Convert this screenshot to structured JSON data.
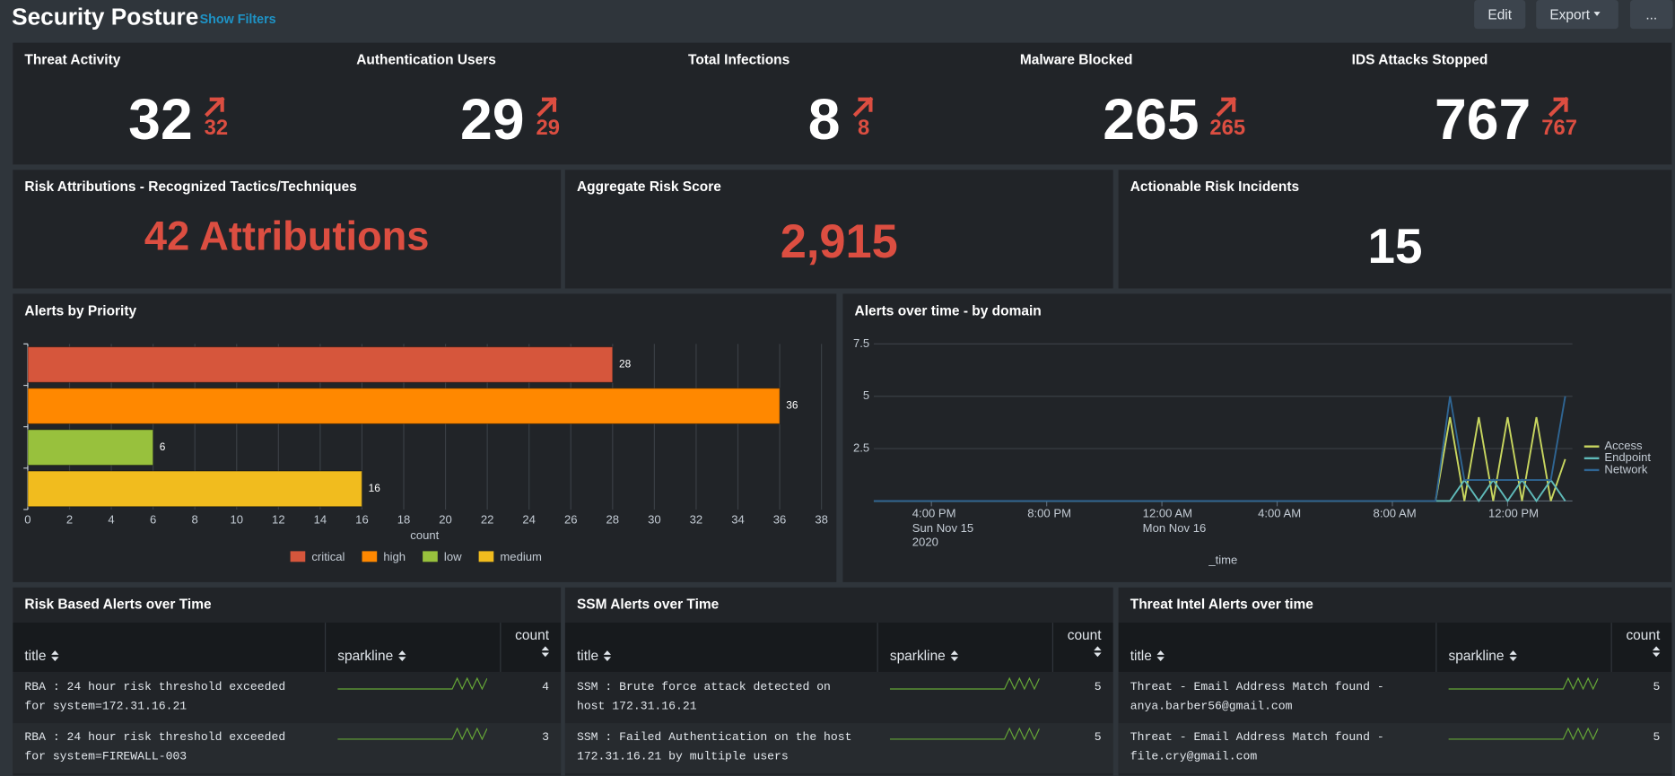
{
  "header": {
    "title": "Security Posture",
    "show_filters": "Show Filters",
    "buttons": [
      "Edit",
      "Export",
      "..."
    ]
  },
  "kpis": [
    {
      "title": "Threat Activity",
      "value": 32,
      "delta": 32
    },
    {
      "title": "Authentication Users",
      "value": 29,
      "delta": 29
    },
    {
      "title": "Total Infections",
      "value": 8,
      "delta": 8
    },
    {
      "title": "Malware Blocked",
      "value": 265,
      "delta": 265
    },
    {
      "title": "IDS Attacks Stopped",
      "value": 767,
      "delta": 767
    }
  ],
  "risk": [
    {
      "title": "Risk Attributions - Recognized Tactics/Techniques",
      "value": "42 Attributions",
      "color": "#dc4e41"
    },
    {
      "title": "Aggregate Risk Score",
      "value": "2,915",
      "color": "#dc4e41"
    },
    {
      "title": "Actionable Risk Incidents",
      "value": 15,
      "color": "#ffffff"
    }
  ],
  "chart_data": [
    {
      "type": "bar",
      "orientation": "horizontal",
      "title": "Alerts by Priority",
      "categories": [
        "critical",
        "high",
        "low",
        "medium"
      ],
      "values": [
        28,
        36,
        6,
        16
      ],
      "colors": [
        "#d6563c",
        "#ff8800",
        "#98c13d",
        "#f1bc1e"
      ],
      "xlim": [
        0,
        38
      ],
      "xticks": [
        0,
        2,
        4,
        6,
        8,
        10,
        12,
        14,
        16,
        18,
        20,
        22,
        24,
        26,
        28,
        30,
        32,
        34,
        36,
        38
      ],
      "xlabel": "count",
      "grid": true,
      "legend": "bottom"
    },
    {
      "type": "line",
      "title": "Alerts over time - by domain",
      "x": [
        "2020-11-15T14:00",
        "2020-11-16T09:30",
        "2020-11-16T10:00",
        "2020-11-16T10:30",
        "2020-11-16T11:00",
        "2020-11-16T11:30",
        "2020-11-16T12:00",
        "2020-11-16T12:30",
        "2020-11-16T13:00",
        "2020-11-16T13:30",
        "2020-11-16T14:00"
      ],
      "series": [
        {
          "name": "Access",
          "color": "#c8d65f",
          "values": [
            0,
            0,
            4,
            0,
            4,
            0,
            4,
            0,
            4,
            0,
            2
          ]
        },
        {
          "name": "Endpoint",
          "color": "#5fbab9",
          "values": [
            0,
            0,
            0,
            1,
            0,
            1,
            0,
            1,
            0,
            1,
            0
          ]
        },
        {
          "name": "Network",
          "color": "#2f6593",
          "values": [
            0,
            0,
            5,
            1,
            1,
            1,
            1,
            1,
            1,
            1,
            5
          ]
        }
      ],
      "xlim": [
        "2020-11-15T14:00",
        "2020-11-16T14:15"
      ],
      "xticks": [
        {
          "value": "2020-11-15T16:00",
          "label": "4:00 PM\nSun Nov 15\n2020"
        },
        {
          "value": "2020-11-15T20:00",
          "label": "8:00 PM"
        },
        {
          "value": "2020-11-16T00:00",
          "label": "12:00 AM\nMon Nov 16"
        },
        {
          "value": "2020-11-16T04:00",
          "label": "4:00 AM"
        },
        {
          "value": "2020-11-16T08:00",
          "label": "8:00 AM"
        },
        {
          "value": "2020-11-16T12:00",
          "label": "12:00 PM"
        }
      ],
      "ylim": [
        0,
        7.5
      ],
      "yticks": [
        2.5,
        5,
        7.5
      ],
      "xlabel": "_time",
      "grid": true,
      "legend": "right"
    }
  ],
  "tables": [
    {
      "title": "Risk Based Alerts over Time",
      "columns": [
        "title",
        "sparkline",
        "count"
      ],
      "rows": [
        {
          "title": "RBA : 24 hour risk threshold exceeded for system=172.31.16.21",
          "sparkline": [
            0,
            0,
            0,
            0,
            0,
            0,
            0,
            0,
            0,
            0,
            0,
            0,
            0,
            0,
            0,
            0,
            0,
            0,
            0,
            0,
            0,
            0,
            0,
            0,
            1,
            0,
            1,
            0,
            1,
            0,
            1
          ],
          "count": 4
        },
        {
          "title": "RBA : 24 hour risk threshold exceeded for system=FIREWALL-003",
          "sparkline": [
            0,
            0,
            0,
            0,
            0,
            0,
            0,
            0,
            0,
            0,
            0,
            0,
            0,
            0,
            0,
            0,
            0,
            0,
            0,
            0,
            0,
            0,
            0,
            0,
            1,
            0,
            1,
            0,
            1,
            0,
            1
          ],
          "count": 3
        }
      ]
    },
    {
      "title": "SSM Alerts over Time",
      "columns": [
        "title",
        "sparkline",
        "count"
      ],
      "rows": [
        {
          "title": "SSM : Brute force attack detected on host 172.31.16.21",
          "sparkline": [
            0,
            0,
            0,
            0,
            0,
            0,
            0,
            0,
            0,
            0,
            0,
            0,
            0,
            0,
            0,
            0,
            0,
            0,
            0,
            0,
            0,
            0,
            0,
            0,
            1,
            0,
            1,
            0,
            1,
            0,
            1
          ],
          "count": 5
        },
        {
          "title": "SSM : Failed Authentication on the host 172.31.16.21 by multiple users",
          "sparkline": [
            0,
            0,
            0,
            0,
            0,
            0,
            0,
            0,
            0,
            0,
            0,
            0,
            0,
            0,
            0,
            0,
            0,
            0,
            0,
            0,
            0,
            0,
            0,
            0,
            1,
            0,
            1,
            0,
            1,
            0,
            1
          ],
          "count": 5
        }
      ]
    },
    {
      "title": "Threat Intel Alerts over time",
      "columns": [
        "title",
        "sparkline",
        "count"
      ],
      "rows": [
        {
          "title": "Threat - Email Address Match found - anya.barber56@gmail.com",
          "sparkline": [
            0,
            0,
            0,
            0,
            0,
            0,
            0,
            0,
            0,
            0,
            0,
            0,
            0,
            0,
            0,
            0,
            0,
            0,
            0,
            0,
            0,
            0,
            0,
            0,
            1,
            0,
            1,
            0,
            1,
            0,
            1
          ],
          "count": 5
        },
        {
          "title": "Threat - Email Address Match found - file.cry@gmail.com",
          "sparkline": [
            0,
            0,
            0,
            0,
            0,
            0,
            0,
            0,
            0,
            0,
            0,
            0,
            0,
            0,
            0,
            0,
            0,
            0,
            0,
            0,
            0,
            0,
            0,
            0,
            1,
            0,
            1,
            0,
            1,
            0,
            1
          ],
          "count": 5
        }
      ]
    }
  ]
}
